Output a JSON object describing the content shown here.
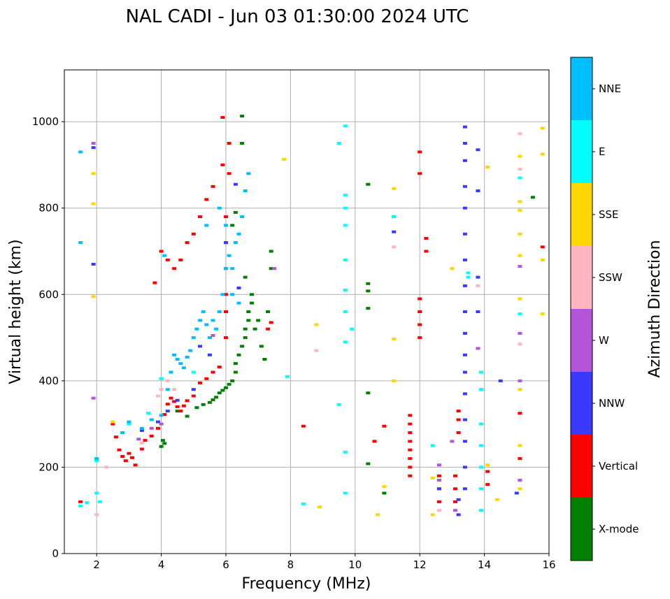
{
  "chart_data": {
    "type": "scatter",
    "title": "NAL CADI - Jun 03 01:30:00 2024 UTC",
    "xlabel": "Frequency (MHz)",
    "ylabel": "Virtual height (km)",
    "xlim": [
      1,
      16
    ],
    "ylim": [
      0,
      1120
    ],
    "xticks": [
      2,
      4,
      6,
      8,
      10,
      12,
      14,
      16
    ],
    "yticks": [
      0,
      200,
      400,
      600,
      800,
      1000
    ],
    "grid": true,
    "colorbar": {
      "label": "Azimuth Direction",
      "categories": [
        {
          "name": "X-mode",
          "color": "#008000"
        },
        {
          "name": "Vertical",
          "color": "#ff0000"
        },
        {
          "name": "NNW",
          "color": "#3a3aff"
        },
        {
          "name": "W",
          "color": "#b455d8"
        },
        {
          "name": "SSW",
          "color": "#ffb6c1"
        },
        {
          "name": "SSE",
          "color": "#ffd700"
        },
        {
          "name": "E",
          "color": "#00ffff"
        },
        {
          "name": "NNE",
          "color": "#00bfff"
        }
      ]
    },
    "series": [
      {
        "name": "X-mode",
        "points": [
          [
            4.0,
            248
          ],
          [
            4.05,
            262
          ],
          [
            4.1,
            255
          ],
          [
            4.5,
            330
          ],
          [
            4.8,
            318
          ],
          [
            5.1,
            338
          ],
          [
            5.3,
            345
          ],
          [
            5.5,
            350
          ],
          [
            5.6,
            356
          ],
          [
            5.7,
            362
          ],
          [
            5.8,
            372
          ],
          [
            5.9,
            378
          ],
          [
            6.0,
            384
          ],
          [
            6.1,
            392
          ],
          [
            6.2,
            400
          ],
          [
            6.3,
            420
          ],
          [
            6.3,
            440
          ],
          [
            6.4,
            460
          ],
          [
            6.5,
            480
          ],
          [
            6.6,
            500
          ],
          [
            6.6,
            520
          ],
          [
            6.7,
            540
          ],
          [
            6.7,
            560
          ],
          [
            6.8,
            580
          ],
          [
            6.8,
            600
          ],
          [
            6.9,
            520
          ],
          [
            7.0,
            540
          ],
          [
            7.1,
            480
          ],
          [
            7.2,
            450
          ],
          [
            7.3,
            560
          ],
          [
            7.4,
            660
          ],
          [
            7.4,
            700
          ],
          [
            6.6,
            640
          ],
          [
            6.2,
            760
          ],
          [
            6.3,
            790
          ],
          [
            6.5,
            950
          ],
          [
            6.5,
            1013
          ],
          [
            10.4,
            208
          ],
          [
            10.4,
            372
          ],
          [
            10.4,
            568
          ],
          [
            10.4,
            608
          ],
          [
            10.4,
            625
          ],
          [
            10.4,
            855
          ],
          [
            10.9,
            140
          ],
          [
            11.2,
            780
          ],
          [
            15.5,
            825
          ]
        ]
      },
      {
        "name": "Vertical",
        "points": [
          [
            1.5,
            120
          ],
          [
            2.5,
            300
          ],
          [
            2.6,
            270
          ],
          [
            2.7,
            240
          ],
          [
            2.8,
            225
          ],
          [
            2.9,
            215
          ],
          [
            3.0,
            232
          ],
          [
            3.1,
            222
          ],
          [
            3.2,
            205
          ],
          [
            3.4,
            242
          ],
          [
            3.5,
            262
          ],
          [
            3.7,
            272
          ],
          [
            3.9,
            290
          ],
          [
            4.1,
            322
          ],
          [
            4.2,
            346
          ],
          [
            4.3,
            360
          ],
          [
            4.4,
            352
          ],
          [
            4.5,
            340
          ],
          [
            4.6,
            330
          ],
          [
            4.7,
            342
          ],
          [
            4.8,
            354
          ],
          [
            5.0,
            365
          ],
          [
            5.2,
            395
          ],
          [
            5.4,
            405
          ],
          [
            5.6,
            420
          ],
          [
            5.8,
            432
          ],
          [
            6.0,
            500
          ],
          [
            6.0,
            560
          ],
          [
            6.0,
            600
          ],
          [
            6.0,
            660
          ],
          [
            6.0,
            720
          ],
          [
            6.0,
            780
          ],
          [
            4.0,
            700
          ],
          [
            4.2,
            680
          ],
          [
            4.4,
            660
          ],
          [
            4.6,
            680
          ],
          [
            4.8,
            720
          ],
          [
            5.0,
            740
          ],
          [
            5.2,
            780
          ],
          [
            5.4,
            820
          ],
          [
            5.6,
            850
          ],
          [
            5.9,
            900
          ],
          [
            5.9,
            1010
          ],
          [
            6.1,
            950
          ],
          [
            6.1,
            880
          ],
          [
            7.3,
            520
          ],
          [
            7.4,
            535
          ],
          [
            3.8,
            627
          ],
          [
            8.4,
            295
          ],
          [
            10.6,
            260
          ],
          [
            10.9,
            295
          ],
          [
            11.7,
            180
          ],
          [
            11.7,
            200
          ],
          [
            11.7,
            220
          ],
          [
            11.7,
            240
          ],
          [
            11.7,
            260
          ],
          [
            11.7,
            280
          ],
          [
            11.7,
            300
          ],
          [
            11.7,
            320
          ],
          [
            12.0,
            500
          ],
          [
            12.0,
            530
          ],
          [
            12.0,
            560
          ],
          [
            12.0,
            590
          ],
          [
            12.0,
            880
          ],
          [
            12.0,
            930
          ],
          [
            12.2,
            700
          ],
          [
            12.2,
            730
          ],
          [
            12.6,
            120
          ],
          [
            12.6,
            150
          ],
          [
            12.6,
            180
          ],
          [
            13.1,
            120
          ],
          [
            13.1,
            150
          ],
          [
            13.1,
            180
          ],
          [
            13.2,
            280
          ],
          [
            13.2,
            310
          ],
          [
            13.2,
            330
          ],
          [
            14.1,
            160
          ],
          [
            14.1,
            190
          ],
          [
            15.1,
            220
          ],
          [
            15.1,
            325
          ],
          [
            15.8,
            710
          ]
        ]
      },
      {
        "name": "NNW",
        "points": [
          [
            1.9,
            670
          ],
          [
            1.9,
            940
          ],
          [
            3.4,
            285
          ],
          [
            3.9,
            305
          ],
          [
            4.2,
            330
          ],
          [
            4.5,
            355
          ],
          [
            5.0,
            380
          ],
          [
            5.2,
            480
          ],
          [
            5.5,
            460
          ],
          [
            6.0,
            720
          ],
          [
            6.3,
            855
          ],
          [
            6.4,
            615
          ],
          [
            11.2,
            745
          ],
          [
            12.6,
            150
          ],
          [
            13.2,
            90
          ],
          [
            13.2,
            125
          ],
          [
            13.4,
            150
          ],
          [
            13.4,
            200
          ],
          [
            13.4,
            260
          ],
          [
            13.4,
            310
          ],
          [
            13.4,
            370
          ],
          [
            13.4,
            420
          ],
          [
            13.4,
            460
          ],
          [
            13.4,
            510
          ],
          [
            13.4,
            560
          ],
          [
            13.4,
            620
          ],
          [
            13.4,
            680
          ],
          [
            13.4,
            740
          ],
          [
            13.4,
            800
          ],
          [
            13.4,
            850
          ],
          [
            13.4,
            910
          ],
          [
            13.4,
            950
          ],
          [
            13.4,
            988
          ],
          [
            13.8,
            560
          ],
          [
            13.8,
            640
          ],
          [
            13.8,
            840
          ],
          [
            13.8,
            935
          ],
          [
            14.5,
            400
          ],
          [
            15.0,
            140
          ]
        ]
      },
      {
        "name": "W",
        "points": [
          [
            1.9,
            360
          ],
          [
            1.9,
            950
          ],
          [
            3.3,
            265
          ],
          [
            3.7,
            290
          ],
          [
            4.0,
            300
          ],
          [
            5.6,
            505
          ],
          [
            7.5,
            660
          ],
          [
            12.6,
            170
          ],
          [
            12.6,
            205
          ],
          [
            13.0,
            260
          ],
          [
            13.1,
            100
          ],
          [
            13.8,
            475
          ],
          [
            15.1,
            170
          ],
          [
            15.1,
            400
          ],
          [
            15.1,
            510
          ],
          [
            15.1,
            665
          ]
        ]
      },
      {
        "name": "SSW",
        "points": [
          [
            2.0,
            90
          ],
          [
            2.3,
            200
          ],
          [
            3.4,
            256
          ],
          [
            3.9,
            365
          ],
          [
            4.0,
            380
          ],
          [
            4.2,
            400
          ],
          [
            4.4,
            380
          ],
          [
            8.8,
            470
          ],
          [
            11.2,
            710
          ],
          [
            12.6,
            100
          ],
          [
            13.8,
            620
          ],
          [
            15.1,
            485
          ],
          [
            15.1,
            890
          ],
          [
            15.1,
            972
          ]
        ]
      },
      {
        "name": "SSE",
        "points": [
          [
            1.9,
            595
          ],
          [
            1.9,
            810
          ],
          [
            1.9,
            880
          ],
          [
            2.5,
            305
          ],
          [
            7.8,
            913
          ],
          [
            8.8,
            530
          ],
          [
            8.9,
            108
          ],
          [
            10.7,
            90
          ],
          [
            10.9,
            155
          ],
          [
            11.2,
            400
          ],
          [
            11.2,
            497
          ],
          [
            11.2,
            845
          ],
          [
            12.4,
            90
          ],
          [
            12.4,
            175
          ],
          [
            13.0,
            660
          ],
          [
            14.1,
            205
          ],
          [
            14.4,
            125
          ],
          [
            14.1,
            895
          ],
          [
            15.1,
            150
          ],
          [
            15.1,
            250
          ],
          [
            15.1,
            380
          ],
          [
            15.1,
            590
          ],
          [
            15.1,
            690
          ],
          [
            15.1,
            740
          ],
          [
            15.1,
            795
          ],
          [
            15.1,
            815
          ],
          [
            15.1,
            920
          ],
          [
            15.8,
            555
          ],
          [
            15.8,
            680
          ],
          [
            15.8,
            925
          ],
          [
            15.8,
            985
          ]
        ]
      },
      {
        "name": "E",
        "points": [
          [
            1.5,
            110
          ],
          [
            1.7,
            118
          ],
          [
            2.0,
            140
          ],
          [
            2.0,
            215
          ],
          [
            2.1,
            120
          ],
          [
            3.0,
            300
          ],
          [
            3.6,
            325
          ],
          [
            4.0,
            405
          ],
          [
            5.0,
            420
          ],
          [
            7.9,
            410
          ],
          [
            8.4,
            115
          ],
          [
            9.5,
            345
          ],
          [
            9.7,
            140
          ],
          [
            9.7,
            235
          ],
          [
            9.7,
            490
          ],
          [
            9.7,
            560
          ],
          [
            9.7,
            610
          ],
          [
            9.7,
            680
          ],
          [
            9.7,
            760
          ],
          [
            9.7,
            800
          ],
          [
            9.7,
            830
          ],
          [
            9.7,
            990
          ],
          [
            9.5,
            950
          ],
          [
            9.9,
            520
          ],
          [
            11.2,
            780
          ],
          [
            12.4,
            250
          ],
          [
            13.5,
            640
          ],
          [
            13.5,
            650
          ],
          [
            13.9,
            100
          ],
          [
            13.9,
            150
          ],
          [
            13.9,
            200
          ],
          [
            13.9,
            250
          ],
          [
            13.9,
            300
          ],
          [
            13.9,
            380
          ],
          [
            13.9,
            420
          ],
          [
            15.1,
            555
          ],
          [
            15.1,
            870
          ]
        ]
      },
      {
        "name": "NNE",
        "points": [
          [
            1.5,
            720
          ],
          [
            1.5,
            930
          ],
          [
            2.0,
            220
          ],
          [
            2.8,
            280
          ],
          [
            3.0,
            305
          ],
          [
            3.4,
            290
          ],
          [
            3.7,
            310
          ],
          [
            4.0,
            320
          ],
          [
            4.2,
            380
          ],
          [
            4.3,
            420
          ],
          [
            4.4,
            460
          ],
          [
            4.5,
            450
          ],
          [
            4.6,
            440
          ],
          [
            4.7,
            430
          ],
          [
            4.8,
            455
          ],
          [
            4.9,
            470
          ],
          [
            5.0,
            500
          ],
          [
            5.1,
            520
          ],
          [
            5.2,
            540
          ],
          [
            5.3,
            560
          ],
          [
            5.4,
            530
          ],
          [
            5.5,
            500
          ],
          [
            5.6,
            540
          ],
          [
            5.7,
            520
          ],
          [
            5.8,
            560
          ],
          [
            5.9,
            600
          ],
          [
            6.0,
            660
          ],
          [
            6.1,
            690
          ],
          [
            6.2,
            660
          ],
          [
            6.3,
            720
          ],
          [
            6.4,
            740
          ],
          [
            6.5,
            780
          ],
          [
            6.6,
            840
          ],
          [
            6.7,
            880
          ],
          [
            5.4,
            760
          ],
          [
            5.8,
            800
          ],
          [
            6.0,
            760
          ],
          [
            6.2,
            600
          ],
          [
            6.4,
            580
          ],
          [
            4.1,
            690
          ]
        ]
      }
    ]
  }
}
